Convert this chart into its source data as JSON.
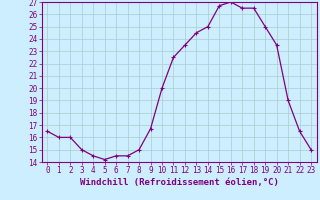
{
  "x": [
    0,
    1,
    2,
    3,
    4,
    5,
    6,
    7,
    8,
    9,
    10,
    11,
    12,
    13,
    14,
    15,
    16,
    17,
    18,
    19,
    20,
    21,
    22,
    23
  ],
  "y": [
    16.5,
    16.0,
    16.0,
    15.0,
    14.5,
    14.2,
    14.5,
    14.5,
    15.0,
    16.7,
    20.0,
    22.5,
    23.5,
    24.5,
    25.0,
    26.7,
    27.0,
    26.5,
    26.5,
    25.0,
    23.5,
    19.0,
    16.5,
    15.0
  ],
  "line_color": "#800080",
  "marker": "+",
  "marker_size": 3,
  "bg_color": "#cceeff",
  "grid_color": "#aacccc",
  "xlabel": "Windchill (Refroidissement éolien,°C)",
  "ylim": [
    14,
    27
  ],
  "xlim_min": -0.5,
  "xlim_max": 23.5,
  "yticks": [
    14,
    15,
    16,
    17,
    18,
    19,
    20,
    21,
    22,
    23,
    24,
    25,
    26,
    27
  ],
  "xticks": [
    0,
    1,
    2,
    3,
    4,
    5,
    6,
    7,
    8,
    9,
    10,
    11,
    12,
    13,
    14,
    15,
    16,
    17,
    18,
    19,
    20,
    21,
    22,
    23
  ],
  "font_color": "#800080",
  "tick_fontsize": 5.5,
  "label_fontsize": 6.5,
  "linewidth": 0.9,
  "markeredgewidth": 0.8
}
